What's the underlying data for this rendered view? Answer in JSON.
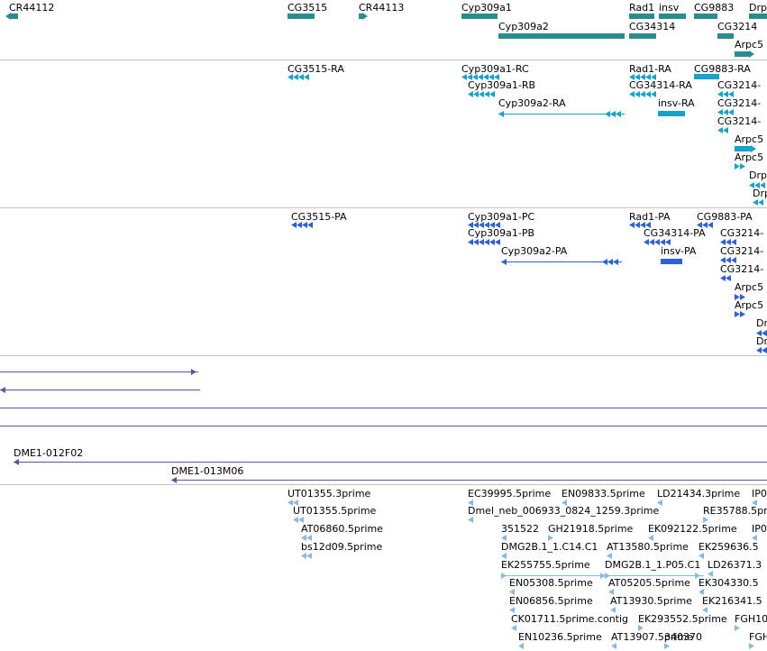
{
  "colors": {
    "genes": "#2a8c8c",
    "transcripts_a": "#15a3c9",
    "transcripts_b": "#2d62d2",
    "clones": "#6a4fa0",
    "ests": "#8ab8e0",
    "divider": "#c2c2c2"
  },
  "tracks": [
    {
      "id": "genes",
      "style": "gene",
      "features": [
        {
          "label": "CR44112"
        },
        {
          "label": "CG3515"
        },
        {
          "label": "CR44113"
        },
        {
          "label": "Cyp309a1"
        },
        {
          "label": "Cyp309a2"
        },
        {
          "label": "Rad1"
        },
        {
          "label": "insv"
        },
        {
          "label": "CG9883"
        },
        {
          "label": "Drp"
        },
        {
          "label": "CG34314"
        },
        {
          "label": "CG3214"
        },
        {
          "label": "Arpc5"
        }
      ]
    },
    {
      "id": "transcripts-a",
      "style": "tx_a",
      "features": [
        {
          "label": "CG3515-RA"
        },
        {
          "label": "Cyp309a1-RC"
        },
        {
          "label": "Cyp309a1-RB"
        },
        {
          "label": "Cyp309a2-RA"
        },
        {
          "label": "Rad1-RA"
        },
        {
          "label": "CG9883-RA"
        },
        {
          "label": "CG34314-RA"
        },
        {
          "label": "insv-RA"
        },
        {
          "label": "CG3214-"
        },
        {
          "label": "CG3214-"
        },
        {
          "label": "CG3214-"
        },
        {
          "label": "Arpc5"
        },
        {
          "label": "Arpc5"
        },
        {
          "label": "Drp"
        },
        {
          "label": "Drp"
        }
      ]
    },
    {
      "id": "transcripts-b",
      "style": "tx_b",
      "features": [
        {
          "label": "CG3515-PA"
        },
        {
          "label": "Cyp309a1-PC"
        },
        {
          "label": "Cyp309a1-PB"
        },
        {
          "label": "Cyp309a2-PA"
        },
        {
          "label": "Rad1-PA"
        },
        {
          "label": "CG9883-PA"
        },
        {
          "label": "CG34314-PA"
        },
        {
          "label": "insv-PA"
        },
        {
          "label": "CG3214-"
        },
        {
          "label": "CG3214-"
        },
        {
          "label": "CG3214-"
        },
        {
          "label": "Arpc5"
        },
        {
          "label": "Arpc5"
        },
        {
          "label": "Dr"
        },
        {
          "label": "Dr"
        }
      ]
    },
    {
      "id": "clones",
      "style": "clone",
      "features": [
        {
          "label": ""
        },
        {
          "label": ""
        },
        {
          "label": ""
        },
        {
          "label": ""
        },
        {
          "label": "DME1-012F02"
        },
        {
          "label": "DME1-013M06"
        }
      ]
    },
    {
      "id": "ests",
      "style": "est",
      "features": [
        {
          "label": "UT01355.3prime"
        },
        {
          "label": "UT01355.5prime"
        },
        {
          "label": "AT06860.5prime"
        },
        {
          "label": "bs12d09.5prime"
        },
        {
          "label": "EC39995.5prime"
        },
        {
          "label": "EN09833.5prime"
        },
        {
          "label": "LD21434.3prime"
        },
        {
          "label": "IP0"
        },
        {
          "label": "Dmel_neb_006933_0824_1259.3prime"
        },
        {
          "label": "RE35788.5prime"
        },
        {
          "label": "351522"
        },
        {
          "label": "GH21918.5prime"
        },
        {
          "label": "EK092122.5prime"
        },
        {
          "label": "IP0"
        },
        {
          "label": "DMG2B.1_1.C14.C1"
        },
        {
          "label": "AT13580.5prime"
        },
        {
          "label": "EK259636.5"
        },
        {
          "label": "EK255755.5prime"
        },
        {
          "label": "DMG2B.1_1.P05.C1"
        },
        {
          "label": "LD26371.3"
        },
        {
          "label": "EN05308.5prime"
        },
        {
          "label": "AT05205.5prime"
        },
        {
          "label": "EK304330.5"
        },
        {
          "label": "EN06856.5prime"
        },
        {
          "label": "AT13930.5prime"
        },
        {
          "label": "EK216341.5"
        },
        {
          "label": "CK01711.5prime.contig"
        },
        {
          "label": "EK293552.5prime"
        },
        {
          "label": "FGH10"
        },
        {
          "label": "EN10236.5prime"
        },
        {
          "label": "AT13907.5prime"
        },
        {
          "label": "340370"
        },
        {
          "label": "FGH"
        }
      ]
    }
  ]
}
